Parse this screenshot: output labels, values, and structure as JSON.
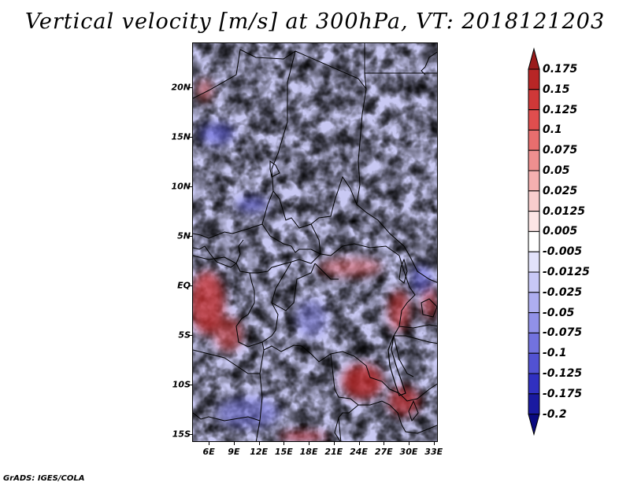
{
  "title": "Vertical velocity [m/s] at 300hPa, VT: 2018121203",
  "footer": "GrADS: IGES/COLA",
  "map": {
    "lat_labels": [
      "20N",
      "15N",
      "10N",
      "5N",
      "EQ",
      "5S",
      "10S",
      "15S"
    ],
    "lon_labels": [
      "6E",
      "9E",
      "12E",
      "15E",
      "18E",
      "21E",
      "24E",
      "27E",
      "30E",
      "33E"
    ],
    "lat_range": [
      -15.8,
      24.5
    ],
    "lon_range": [
      4.0,
      33.5
    ]
  },
  "colorbar": {
    "labels": [
      "0.175",
      "0.15",
      "0.125",
      "0.1",
      "0.075",
      "0.05",
      "0.025",
      "0.0125",
      "0.005",
      "-0.005",
      "-0.0125",
      "-0.025",
      "-0.05",
      "-0.075",
      "-0.1",
      "-0.125",
      "-0.175",
      "-0.2"
    ],
    "colors": [
      "#9b1c1c",
      "#b82626",
      "#cf3838",
      "#e04e4e",
      "#e86e6e",
      "#ef8f8f",
      "#f5b0b0",
      "#f9cece",
      "#fde6e6",
      "#ffffff",
      "#e3e3fb",
      "#c8c8f6",
      "#aeaef0",
      "#9191e8",
      "#7272de",
      "#5252d2",
      "#3030c0",
      "#1a1aa0",
      "#0a0a80"
    ]
  }
}
